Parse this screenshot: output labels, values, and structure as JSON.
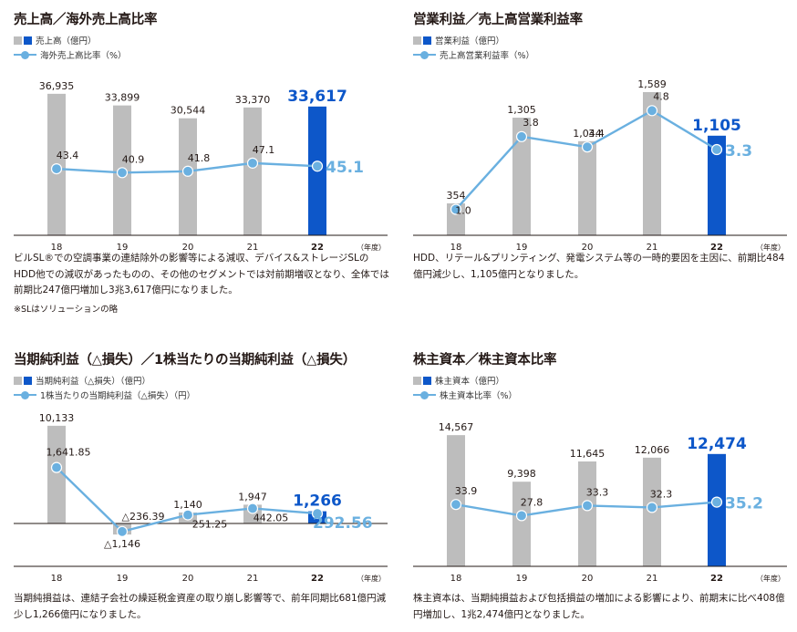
{
  "colors": {
    "bar": "#bdbdbd",
    "bar_highlight": "#0d57c9",
    "line": "#6ab0e0",
    "axis": "#231815"
  },
  "panels": [
    {
      "title": "売上高／海外売上高比率",
      "legend_bar": "売上高（億円）",
      "legend_line": "海外売上高比率（%）",
      "description": "ビルSL®での空調事業の連結除外の影響等による減収、デバイス&ストレージSLのHDD他での減収があったものの、その他のセグメントでは対前期増収となり、全体では前期比247億円増加し3兆3,617億円になりました。",
      "note": "※SLはソリューションの略",
      "chart_data": {
        "type": "bar+line",
        "categories": [
          "18",
          "19",
          "20",
          "21",
          "22"
        ],
        "unit_label": "（年度）",
        "bar_series": {
          "name": "売上高（億円）",
          "values": [
            36935,
            33899,
            30544,
            33370,
            33617
          ],
          "labels": [
            "36,935",
            "33,899",
            "30,544",
            "33,370",
            "33,617"
          ]
        },
        "line_series": {
          "name": "海外売上高比率（%）",
          "values": [
            43.4,
            40.9,
            41.8,
            47.1,
            45.1
          ],
          "labels": [
            "43.4",
            "40.9",
            "41.8",
            "47.1",
            "45.1"
          ]
        },
        "bar_range": [
          0,
          40000
        ],
        "line_range": [
          0,
          100
        ]
      }
    },
    {
      "title": "営業利益／売上高営業利益率",
      "legend_bar": "営業利益（億円）",
      "legend_line": "売上高営業利益率（%）",
      "description": "HDD、リテール&プリンティング、発電システム等の一時的要因を主因に、前期比484億円減少し、1,105億円となりました。",
      "chart_data": {
        "type": "bar+line",
        "categories": [
          "18",
          "19",
          "20",
          "21",
          "22"
        ],
        "unit_label": "（年度）",
        "bar_series": {
          "name": "営業利益（億円）",
          "values": [
            354,
            1305,
            1044,
            1589,
            1105
          ],
          "labels": [
            "354",
            "1,305",
            "1,044",
            "1,589",
            "1,105"
          ]
        },
        "line_series": {
          "name": "売上高営業利益率（%）",
          "values": [
            1.0,
            3.8,
            3.4,
            4.8,
            3.3
          ],
          "labels": [
            "1.0",
            "3.8",
            "3.4",
            "4.8",
            "3.3"
          ]
        },
        "bar_range": [
          0,
          1700
        ],
        "line_range": [
          0,
          5.9
        ]
      }
    },
    {
      "title": "当期純利益（△損失）／1株当たりの当期純利益（△損失）",
      "legend_bar": "当期純利益（△損失）（億円）",
      "legend_line": "1株当たりの当期純利益（△損失）（円）",
      "description": "当期純損益は、連結子会社の繰延税金資産の取り崩し影響等で、前年同期比681億円減少し1,266億円になりました。",
      "chart_data": {
        "type": "bar+line",
        "categories": [
          "18",
          "19",
          "20",
          "21",
          "22"
        ],
        "unit_label": "（年度）",
        "bar_series": {
          "name": "当期純利益（△損失）（億円）",
          "values": [
            10133,
            -1146,
            1140,
            1947,
            1266
          ],
          "labels": [
            "10,133",
            "△1,146",
            "1,140",
            "1,947",
            "1,266"
          ]
        },
        "line_series": {
          "name": "1株当たりの当期純利益（△損失）（円）",
          "values": [
            1641.85,
            -236.39,
            251.25,
            442.05,
            292.56
          ],
          "labels": [
            "1,641.85",
            "△236.39",
            "251.25",
            "442.05",
            "292.56"
          ]
        },
        "bar_range": [
          -2500,
          10500
        ],
        "line_range": [
          -660,
          2970
        ]
      }
    },
    {
      "title": "株主資本／株主資本比率",
      "legend_bar": "株主資本（億円）",
      "legend_line": "株主資本比率（%）",
      "description": "株主資本は、当期純損益および包括損益の増加による影響により、前期末に比べ408億円増加し、1兆2,474億円となりました。",
      "chart_data": {
        "type": "bar+line",
        "categories": [
          "18",
          "19",
          "20",
          "21",
          "22"
        ],
        "unit_label": "（年度）",
        "bar_series": {
          "name": "株主資本（億円）",
          "values": [
            14567,
            9398,
            11645,
            12066,
            12474
          ],
          "labels": [
            "14,567",
            "9,398",
            "11,645",
            "12,066",
            "12,474"
          ]
        },
        "line_series": {
          "name": "株主資本比率（%）",
          "values": [
            33.9,
            27.8,
            33.3,
            32.3,
            35.2
          ],
          "labels": [
            "33.9",
            "27.8",
            "33.3",
            "32.3",
            "35.2"
          ]
        },
        "bar_range": [
          0,
          16000
        ],
        "line_range": [
          0,
          79
        ]
      }
    }
  ]
}
